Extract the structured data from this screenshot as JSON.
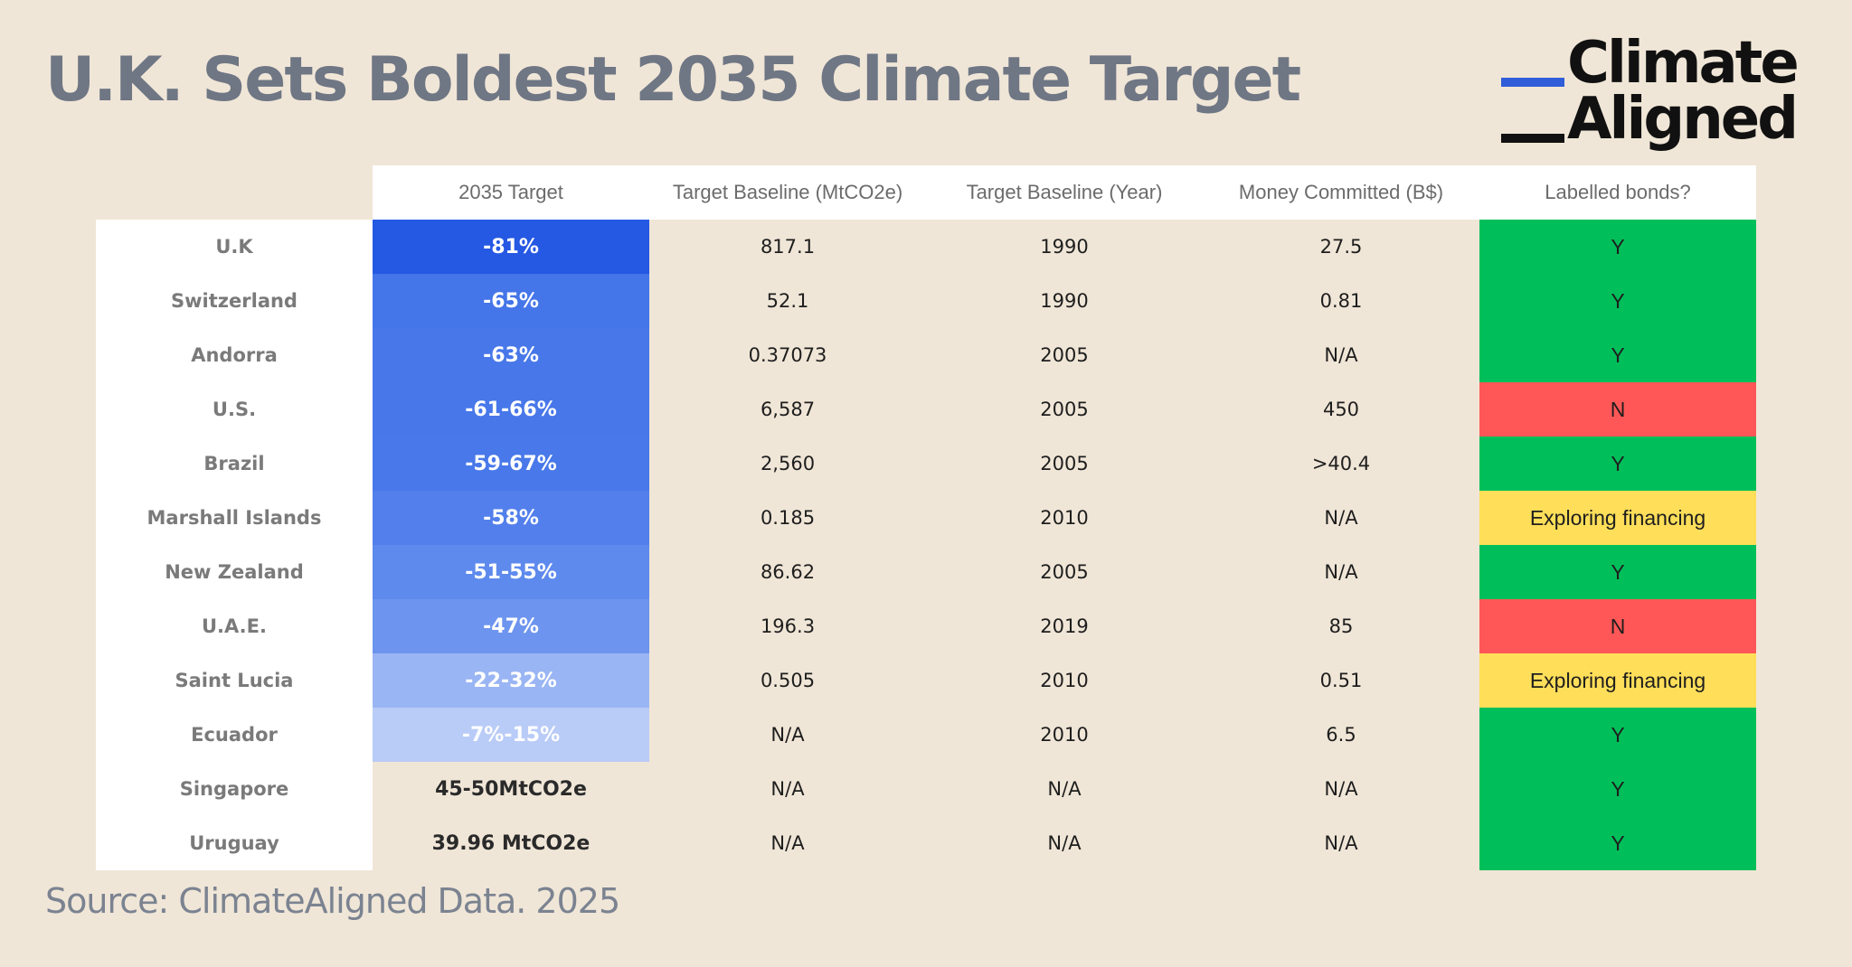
{
  "title": "U.K. Sets Boldest 2035 Climate Target",
  "logo": {
    "line1": "Climate",
    "line2": "Aligned",
    "accent_color": "#2f5ed8",
    "dark_color": "#111111"
  },
  "table": {
    "headers": [
      "",
      "2035 Target",
      "Target Baseline (MtCO2e)",
      "Target Baseline (Year)",
      "Money Committed (B$)",
      "Labelled bonds?"
    ],
    "rows": [
      {
        "country": "U.K",
        "target": "-81%",
        "target_color": "#2558e3",
        "baseline_mtco2e": "817.1",
        "baseline_year": "1990",
        "money": "27.5",
        "bonds": "Y",
        "bonds_color": "#00bf5a"
      },
      {
        "country": "Switzerland",
        "target": "-65%",
        "target_color": "#4475e9",
        "baseline_mtco2e": "52.1",
        "baseline_year": "1990",
        "money": "0.81",
        "bonds": "Y",
        "bonds_color": "#00bf5a"
      },
      {
        "country": "Andorra",
        "target": "-63%",
        "target_color": "#4877e9",
        "baseline_mtco2e": "0.37073",
        "baseline_year": "2005",
        "money": "N/A",
        "bonds": "Y",
        "bonds_color": "#00bf5a"
      },
      {
        "country": "U.S.",
        "target": "-61-66%",
        "target_color": "#4777e9",
        "baseline_mtco2e": "6,587",
        "baseline_year": "2005",
        "money": "450",
        "bonds": "N",
        "bonds_color": "#ff5757"
      },
      {
        "country": "Brazil",
        "target": "-59-67%",
        "target_color": "#4878e9",
        "baseline_mtco2e": "2,560",
        "baseline_year": "2005",
        "money": ">40.4",
        "bonds": "Y",
        "bonds_color": "#00bf5a"
      },
      {
        "country": "Marshall Islands",
        "target": "-58%",
        "target_color": "#527feb",
        "baseline_mtco2e": "0.185",
        "baseline_year": "2010",
        "money": "N/A",
        "bonds": "Exploring financing",
        "bonds_color": "#ffde59"
      },
      {
        "country": "New Zealand",
        "target": "-51-55%",
        "target_color": "#5f8aed",
        "baseline_mtco2e": "86.62",
        "baseline_year": "2005",
        "money": "N/A",
        "bonds": "Y",
        "bonds_color": "#00bf5a"
      },
      {
        "country": "U.A.E.",
        "target": "-47%",
        "target_color": "#6d94ee",
        "baseline_mtco2e": "196.3",
        "baseline_year": "2019",
        "money": "85",
        "bonds": "N",
        "bonds_color": "#ff5757"
      },
      {
        "country": "Saint Lucia",
        "target": "-22-32%",
        "target_color": "#9ab5f3",
        "baseline_mtco2e": "0.505",
        "baseline_year": "2010",
        "money": "0.51",
        "bonds": "Exploring financing",
        "bonds_color": "#ffde59"
      },
      {
        "country": "Ecuador",
        "target": "-7%-15%",
        "target_color": "#b9cbf7",
        "baseline_mtco2e": "N/A",
        "baseline_year": "2010",
        "money": "6.5",
        "bonds": "Y",
        "bonds_color": "#00bf5a"
      },
      {
        "country": "Singapore",
        "target": "45-50MtCO2e",
        "target_color": "",
        "baseline_mtco2e": "N/A",
        "baseline_year": "N/A",
        "money": "N/A",
        "bonds": "Y",
        "bonds_color": "#00bf5a"
      },
      {
        "country": "Uruguay",
        "target": "39.96 MtCO2e",
        "target_color": "",
        "baseline_mtco2e": "N/A",
        "baseline_year": "N/A",
        "money": "N/A",
        "bonds": "Y",
        "bonds_color": "#00bf5a"
      }
    ]
  },
  "source": "Source: ClimateAligned Data. 2025"
}
